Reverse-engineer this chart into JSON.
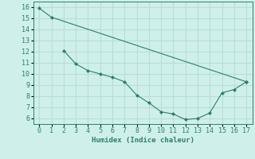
{
  "line1_x": [
    0,
    1,
    17
  ],
  "line1_y": [
    15.9,
    15.1,
    9.3
  ],
  "line2_x": [
    2,
    3,
    4,
    5,
    6,
    7,
    8,
    9,
    10,
    11,
    12,
    13,
    14,
    15,
    16,
    17
  ],
  "line2_y": [
    12.1,
    10.9,
    10.3,
    10.0,
    9.7,
    9.3,
    8.1,
    7.4,
    6.6,
    6.4,
    5.9,
    6.0,
    6.5,
    8.3,
    8.6,
    9.3
  ],
  "line_color": "#2e7d6e",
  "bg_color": "#cff0ea",
  "grid_color": "#b8ddd8",
  "xlabel": "Humidex (Indice chaleur)",
  "xlim": [
    -0.5,
    17.5
  ],
  "ylim": [
    5.5,
    16.5
  ],
  "xticks": [
    0,
    1,
    2,
    3,
    4,
    5,
    6,
    7,
    8,
    9,
    10,
    11,
    12,
    13,
    14,
    15,
    16,
    17
  ],
  "yticks": [
    6,
    7,
    8,
    9,
    10,
    11,
    12,
    13,
    14,
    15,
    16
  ],
  "xlabel_fontsize": 6.5,
  "tick_fontsize": 6.0,
  "marker": "D",
  "markersize": 2.0,
  "linewidth": 0.8
}
